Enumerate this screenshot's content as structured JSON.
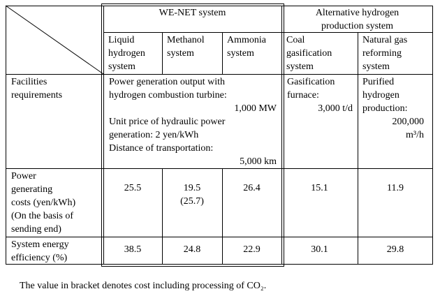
{
  "header": {
    "systems": [
      "WE-NET system",
      [
        "Alternative hydrogen",
        "production system"
      ]
    ],
    "columns": [
      [
        "Liquid",
        "hydrogen",
        "system"
      ],
      [
        "Methanol",
        "system"
      ],
      [
        "Ammonia",
        "system"
      ],
      [
        "Coal",
        "gasification",
        "system"
      ],
      [
        "Natural gas",
        "reforming",
        "system"
      ]
    ]
  },
  "rows": [
    {
      "label": [
        "Facilities",
        "requirements"
      ],
      "we_net": [
        {
          "lines": [
            "Power generation output with",
            "hydrogen combustion turbine:"
          ],
          "value": "1,000 MW"
        },
        {
          "lines": [
            "Unit price of hydraulic power",
            "generation: 2 yen/kWh"
          ]
        },
        {
          "lines": [
            "Distance of transportation:"
          ],
          "value": "5,000 km"
        }
      ],
      "coal": {
        "lines": [
          "Gasification",
          "furnace:"
        ],
        "value": "3,000 t/d"
      },
      "natural_gas": {
        "lines": [
          "Purified",
          "hydrogen",
          "production:"
        ],
        "value": [
          "200,000",
          "m³/h"
        ]
      }
    },
    {
      "label": [
        "Power",
        "generating",
        "costs (yen/kWh)",
        "(On the basis of",
        "sending end)"
      ],
      "values": [
        25.5,
        19.5,
        26.4,
        15.1,
        11.9
      ],
      "bracket": "(25.7)"
    },
    {
      "label": [
        "System energy",
        "efficiency (%)"
      ],
      "values": [
        38.5,
        24.8,
        22.9,
        30.1,
        29.8
      ]
    }
  ],
  "footnote": "The value in bracket denotes cost including processing of CO₂."
}
